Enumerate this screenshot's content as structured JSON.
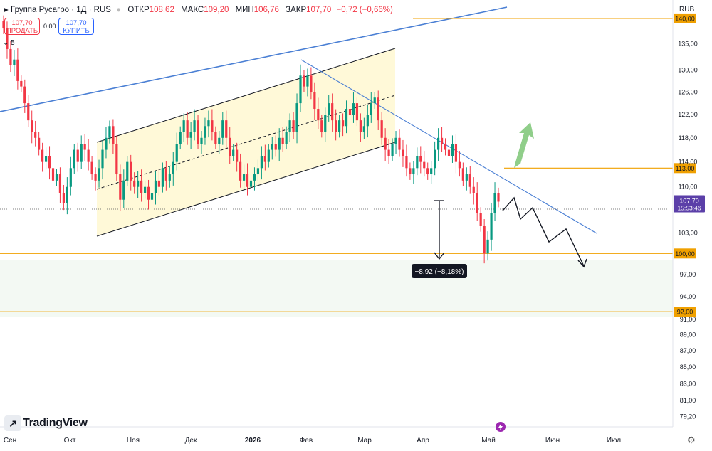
{
  "header": {
    "symbol": "Группа Русагро · 1Д · RUS",
    "open_label": "ОТКР",
    "open": "108,62",
    "high_label": "МАКС",
    "high": "109,20",
    "low_label": "МИН",
    "low": "106,76",
    "close_label": "ЗАКР",
    "close": "107,70",
    "change": "−0,72 (−0,66%)"
  },
  "trade": {
    "sell_price": "107,70",
    "sell_label": "ПРОДАТЬ",
    "spread": "0,00",
    "buy_price": "107,70",
    "buy_label": "КУПИТЬ"
  },
  "indicator_count": "5",
  "currency": "RUB",
  "logo_text": "TradingView",
  "colors": {
    "up": "#089981",
    "down": "#f23645",
    "level": "#f0a000",
    "trend": "#4a7fd4",
    "channel_fill": "#fff9d8"
  },
  "chart_data": {
    "type": "candlestick",
    "symbol": "Группа Русагро",
    "interval": "1Д",
    "y_scale": "log",
    "ylim": [
      78.5,
      142
    ],
    "y_ticks": [
      "135,00",
      "130,00",
      "126,00",
      "122,00",
      "118,00",
      "114,00",
      "110,00",
      "103,00",
      "97,00",
      "94,00",
      "91,00",
      "89,00",
      "87,00",
      "85,00",
      "83,00",
      "81,00",
      "79,20"
    ],
    "x_ticks": [
      "Сен",
      "Окт",
      "Ноя",
      "Дек",
      "2026",
      "Фев",
      "Мар",
      "Апр",
      "Май",
      "Июн",
      "Июл"
    ],
    "levels": [
      {
        "label": "140,00",
        "value": 140.0
      },
      {
        "label": "113,00",
        "value": 113.0
      },
      {
        "label": "100,00",
        "value": 100.0
      },
      {
        "label": "92,00",
        "value": 92.0
      }
    ],
    "last_price": {
      "label": "107,70",
      "value": 107.7,
      "countdown": "15:53:46"
    },
    "measure": {
      "label": "−8,92 (−8,18%)"
    },
    "closes": [
      138,
      134,
      131,
      132,
      128,
      127,
      124,
      121,
      119,
      118,
      116,
      114,
      115,
      113,
      111,
      112,
      109,
      107.5,
      110,
      113,
      116,
      114,
      117,
      116,
      114,
      112,
      111,
      113,
      116,
      118,
      120,
      117,
      112,
      108,
      111,
      114,
      111,
      110,
      111,
      109,
      110,
      108,
      109,
      111,
      110,
      113,
      111,
      112,
      114,
      117,
      119,
      121,
      118,
      119,
      121,
      117,
      118,
      120,
      121,
      119,
      117,
      118,
      121,
      118,
      115,
      116,
      114,
      111,
      112,
      110,
      111,
      112,
      113,
      115,
      114,
      116,
      117,
      116,
      118,
      117,
      119,
      121,
      119,
      124,
      129,
      127,
      129,
      126,
      123,
      121,
      119,
      122,
      124,
      121,
      119,
      121,
      120,
      123,
      122,
      124,
      121,
      119,
      120,
      122,
      124,
      125,
      121,
      118,
      116,
      115,
      117,
      118,
      116,
      115,
      113,
      112,
      113,
      115,
      114,
      113,
      112,
      113,
      116,
      118,
      117,
      116,
      115,
      117,
      114,
      113,
      111,
      112,
      110,
      109,
      106,
      104,
      100,
      102,
      106,
      109,
      107.7
    ]
  }
}
